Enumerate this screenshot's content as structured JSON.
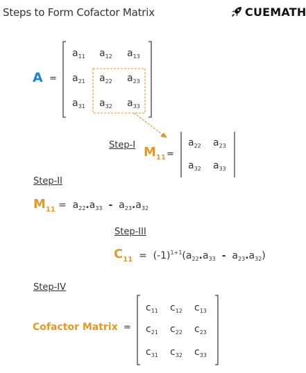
{
  "title": "Steps to Form Cofactor Matrix",
  "brand": {
    "name": "CUEMATH",
    "icon": "rocket-icon",
    "color": "#111111"
  },
  "colors": {
    "accent_blue": "#1b84d4",
    "accent_orange": "#e29a23",
    "text": "#333333"
  },
  "matrix_A": {
    "label": "A",
    "eq": "=",
    "rows": [
      [
        {
          "base": "a",
          "sub": "11"
        },
        {
          "base": "a",
          "sub": "12"
        },
        {
          "base": "a",
          "sub": "13"
        }
      ],
      [
        {
          "base": "a",
          "sub": "21"
        },
        {
          "base": "a",
          "sub": "22"
        },
        {
          "base": "a",
          "sub": "23"
        }
      ],
      [
        {
          "base": "a",
          "sub": "31"
        },
        {
          "base": "a",
          "sub": "32"
        },
        {
          "base": "a",
          "sub": "33"
        }
      ]
    ]
  },
  "step1": {
    "label": "Step-I",
    "minor_base": "M",
    "minor_sub": "11",
    "eq": "=",
    "rows": [
      [
        {
          "base": "a",
          "sub": "22"
        },
        {
          "base": "a",
          "sub": "23"
        }
      ],
      [
        {
          "base": "a",
          "sub": "32"
        },
        {
          "base": "a",
          "sub": "33"
        }
      ]
    ]
  },
  "step2": {
    "label": "Step-II",
    "minor_base": "M",
    "minor_sub": "11",
    "eq": "=",
    "t1": {
      "base": "a",
      "sub": "22"
    },
    "dot1": ".",
    "t2": {
      "base": "a",
      "sub": "33"
    },
    "minus": "-",
    "t3": {
      "base": "a",
      "sub": "23"
    },
    "dot2": ".",
    "t4": {
      "base": "a",
      "sub": "32"
    }
  },
  "step3": {
    "label": "Step-III",
    "cof_base": "C",
    "cof_sub": "11",
    "eq": "=",
    "sign": "(-1)",
    "power": "1+1",
    "open": "(",
    "t1": {
      "base": "a",
      "sub": "22"
    },
    "dot1": ".",
    "t2": {
      "base": "a",
      "sub": "33"
    },
    "minus": "-",
    "t3": {
      "base": "a",
      "sub": "23"
    },
    "dot2": ".",
    "t4": {
      "base": "a",
      "sub": "32"
    },
    "close": ")"
  },
  "step4": {
    "label": "Step-IV",
    "name": "Cofactor Matrix",
    "eq": "=",
    "rows": [
      [
        {
          "base": "c",
          "sub": "11"
        },
        {
          "base": "c",
          "sub": "12"
        },
        {
          "base": "c",
          "sub": "13"
        }
      ],
      [
        {
          "base": "c",
          "sub": "21"
        },
        {
          "base": "c",
          "sub": "22"
        },
        {
          "base": "c",
          "sub": "23"
        }
      ],
      [
        {
          "base": "c",
          "sub": "31"
        },
        {
          "base": "c",
          "sub": "32"
        },
        {
          "base": "c",
          "sub": "33"
        }
      ]
    ]
  }
}
